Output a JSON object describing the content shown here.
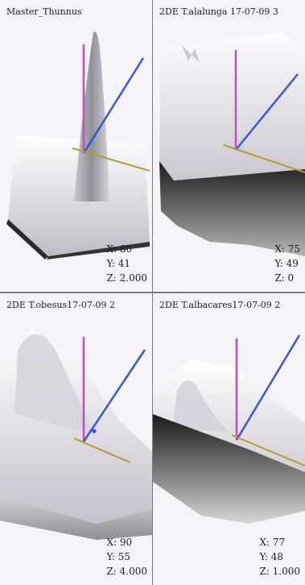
{
  "panels": [
    {
      "title": "Master_Thunnus",
      "x": "X: 80",
      "y": "Y: 41",
      "z": "Z: 2.000"
    },
    {
      "title": "2DE T.alalunga 17-07-09 3",
      "x": "X: 75",
      "y": "Y: 49",
      "z": "Z: 0"
    },
    {
      "title": "2DE T.obesus17-07-09 2",
      "x": "X: 90",
      "y": "Y: 55",
      "z": "Z: 4.000"
    },
    {
      "title": "2DE T.albacares17-07-09 2",
      "x": "X: 77",
      "y": "Y: 48",
      "z": "Z: 1.000"
    }
  ]
}
